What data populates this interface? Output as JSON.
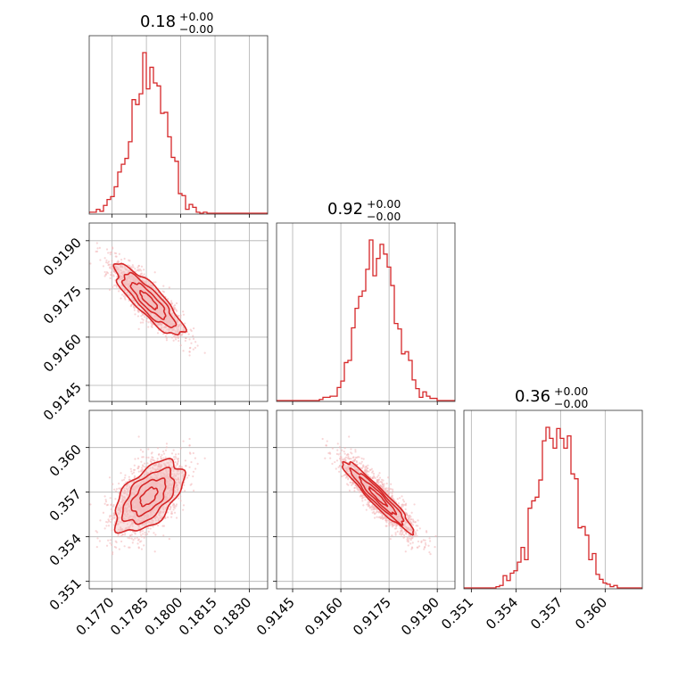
{
  "chart_data": {
    "type": "corner",
    "color": "#d62728",
    "parameters": [
      {
        "title": {
          "value": "0.18",
          "plus": "+0.00",
          "minus": "−0.00"
        },
        "range": [
          0.176,
          0.1838
        ],
        "ticks": [
          0.177,
          0.1785,
          0.18,
          0.1815,
          0.183
        ],
        "tick_labels": [
          "0.1770",
          "0.1785",
          "0.1800",
          "0.1815",
          "0.1830"
        ],
        "mean": 0.1786,
        "sd": 0.00075
      },
      {
        "title": {
          "value": "0.92",
          "plus": "+0.00",
          "minus": "−0.00"
        },
        "range": [
          0.914,
          0.91955
        ],
        "ticks": [
          0.9145,
          0.916,
          0.9175,
          0.919
        ],
        "tick_labels": [
          "0.9145",
          "0.9160",
          "0.9175",
          "0.9190"
        ],
        "mean": 0.91715,
        "sd": 0.00055
      },
      {
        "title": {
          "value": "0.36",
          "plus": "+0.00",
          "minus": "−0.00"
        },
        "range": [
          0.3505,
          0.3625
        ],
        "ticks": [
          0.351,
          0.354,
          0.357,
          0.36
        ],
        "tick_labels": [
          "0.351",
          "0.354",
          "0.357",
          "0.360"
        ],
        "mean": 0.3567,
        "sd": 0.0012
      }
    ],
    "correlations": [
      {
        "x": 0,
        "y": 1,
        "rho": -0.85
      },
      {
        "x": 0,
        "y": 2,
        "rho": 0.55
      },
      {
        "x": 1,
        "y": 2,
        "rho": -0.95
      }
    ],
    "grid": true
  }
}
